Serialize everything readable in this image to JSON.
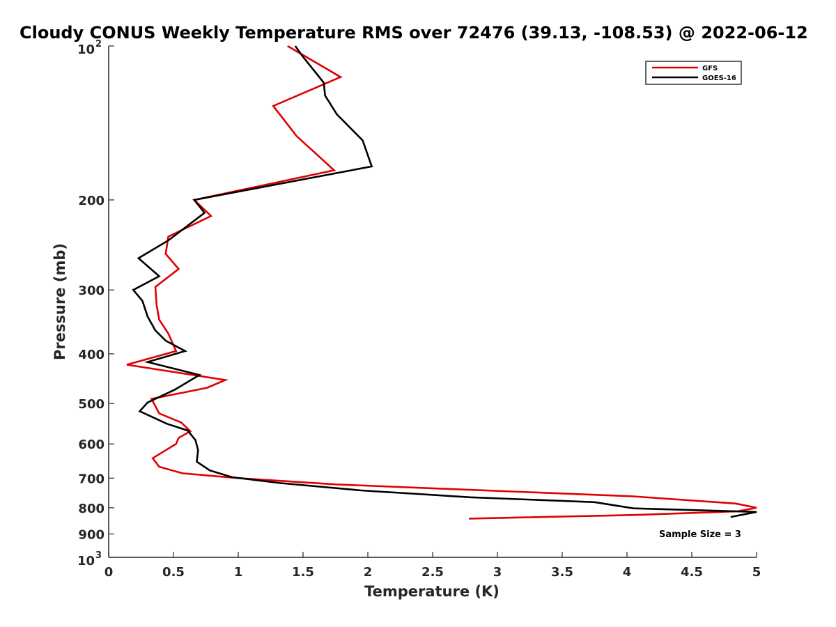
{
  "chart_data": {
    "type": "line",
    "title": "Cloudy CONUS Weekly Temperature RMS over 72476 (39.13, -108.53) @ 2022-06-12",
    "xlabel": "Temperature (K)",
    "ylabel": "Pressure (mb)",
    "xlim": [
      0,
      5
    ],
    "ylim": [
      100,
      1000
    ],
    "y_scale": "log",
    "y_reversed": true,
    "grid": false,
    "legend_position": "top-right",
    "x_ticks": [
      "0",
      "0.5",
      "1",
      "1.5",
      "2",
      "2.5",
      "3",
      "3.5",
      "4",
      "4.5",
      "5"
    ],
    "y_ticks": [
      {
        "value": 100,
        "label": "10",
        "sup": "2"
      },
      {
        "value": 200,
        "label": "200",
        "sup": ""
      },
      {
        "value": 300,
        "label": "300",
        "sup": ""
      },
      {
        "value": 400,
        "label": "400",
        "sup": ""
      },
      {
        "value": 500,
        "label": "500",
        "sup": ""
      },
      {
        "value": 600,
        "label": "600",
        "sup": ""
      },
      {
        "value": 700,
        "label": "700",
        "sup": ""
      },
      {
        "value": 800,
        "label": "800",
        "sup": ""
      },
      {
        "value": 900,
        "label": "900",
        "sup": ""
      },
      {
        "value": 1000,
        "label": "10",
        "sup": "3"
      }
    ],
    "annotation": "Sample Size = 3",
    "series": [
      {
        "name": "GFS",
        "color": "#e00000",
        "points": [
          [
            1.38,
            100
          ],
          [
            1.79,
            115
          ],
          [
            1.27,
            131
          ],
          [
            1.45,
            150
          ],
          [
            1.74,
            175
          ],
          [
            0.66,
            200
          ],
          [
            0.79,
            215
          ],
          [
            0.46,
            236
          ],
          [
            0.44,
            255
          ],
          [
            0.54,
            273
          ],
          [
            0.36,
            296
          ],
          [
            0.37,
            321
          ],
          [
            0.39,
            343
          ],
          [
            0.46,
            365
          ],
          [
            0.52,
            395
          ],
          [
            0.14,
            420
          ],
          [
            0.9,
            450
          ],
          [
            0.76,
            466
          ],
          [
            0.33,
            490
          ],
          [
            0.39,
            523
          ],
          [
            0.56,
            545
          ],
          [
            0.63,
            567
          ],
          [
            0.54,
            584
          ],
          [
            0.52,
            600
          ],
          [
            0.34,
            640
          ],
          [
            0.39,
            665
          ],
          [
            0.57,
            685
          ],
          [
            1.0,
            700
          ],
          [
            1.75,
            720
          ],
          [
            4.05,
            760
          ],
          [
            4.84,
            785
          ],
          [
            5.0,
            800
          ],
          [
            4.85,
            813
          ],
          [
            4.08,
            826
          ],
          [
            2.78,
            840
          ]
        ]
      },
      {
        "name": "GOES-16",
        "color": "#000000",
        "points": [
          [
            1.44,
            100
          ],
          [
            1.5,
            105
          ],
          [
            1.66,
            118
          ],
          [
            1.67,
            125
          ],
          [
            1.76,
            136
          ],
          [
            1.96,
            153
          ],
          [
            2.03,
            172
          ],
          [
            0.66,
            200
          ],
          [
            0.74,
            212
          ],
          [
            0.46,
            240
          ],
          [
            0.23,
            260
          ],
          [
            0.39,
            282
          ],
          [
            0.19,
            300
          ],
          [
            0.26,
            315
          ],
          [
            0.3,
            338
          ],
          [
            0.36,
            360
          ],
          [
            0.44,
            377
          ],
          [
            0.59,
            395
          ],
          [
            0.3,
            415
          ],
          [
            0.7,
            440
          ],
          [
            0.51,
            470
          ],
          [
            0.3,
            498
          ],
          [
            0.24,
            518
          ],
          [
            0.45,
            548
          ],
          [
            0.61,
            565
          ],
          [
            0.67,
            590
          ],
          [
            0.69,
            617
          ],
          [
            0.68,
            650
          ],
          [
            0.78,
            676
          ],
          [
            0.95,
            697
          ],
          [
            1.33,
            716
          ],
          [
            1.95,
            740
          ],
          [
            2.79,
            763
          ],
          [
            3.75,
            780
          ],
          [
            4.05,
            802
          ],
          [
            5.0,
            815
          ],
          [
            4.8,
            834
          ]
        ]
      }
    ]
  }
}
